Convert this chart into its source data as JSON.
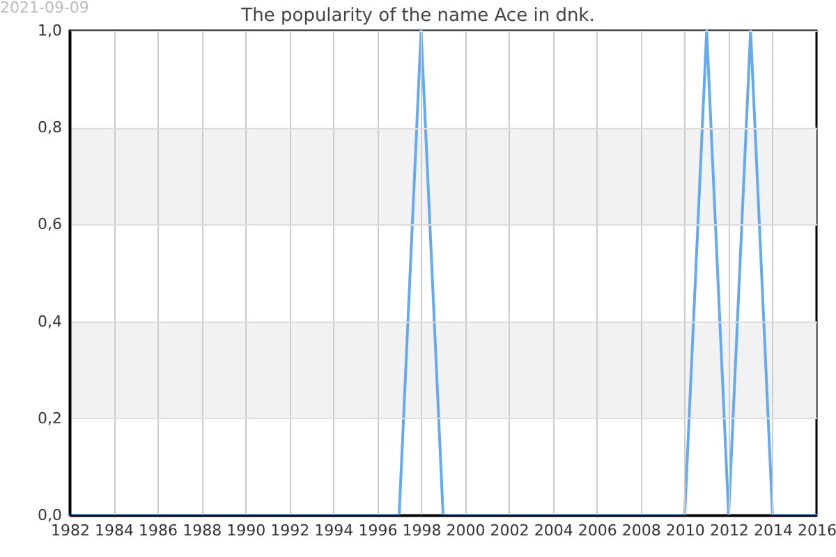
{
  "chart_data": {
    "type": "line",
    "title": "The popularity of the name Ace in dnk.",
    "annotations": [
      "2021-09-09"
    ],
    "x": [
      1982,
      1983,
      1984,
      1985,
      1986,
      1987,
      1988,
      1989,
      1990,
      1991,
      1992,
      1993,
      1994,
      1995,
      1996,
      1997,
      1998,
      1999,
      2000,
      2001,
      2002,
      2003,
      2004,
      2005,
      2006,
      2007,
      2008,
      2009,
      2010,
      2011,
      2012,
      2013,
      2014,
      2015,
      2016
    ],
    "values": [
      0,
      0,
      0,
      0,
      0,
      0,
      0,
      0,
      0,
      0,
      0,
      0,
      0,
      0,
      0,
      0,
      1,
      0,
      0,
      0,
      0,
      0,
      0,
      0,
      0,
      0,
      0,
      0,
      0,
      1,
      0,
      1,
      0,
      0,
      0
    ],
    "color": "#64aaf0",
    "xlim": [
      1982,
      2016
    ],
    "xticks": [
      1982,
      1984,
      1986,
      1988,
      1990,
      1992,
      1994,
      1996,
      1998,
      2000,
      2002,
      2004,
      2006,
      2008,
      2010,
      2012,
      2014,
      2016
    ],
    "ylim": [
      0,
      1
    ],
    "yticks": [
      {
        "value": 0,
        "label": "0,0"
      },
      {
        "value": 0.2,
        "label": "0,2"
      },
      {
        "value": 0.4,
        "label": "0,4"
      },
      {
        "value": 0.6,
        "label": "0,6"
      },
      {
        "value": 0.8,
        "label": "0,8"
      },
      {
        "value": 1,
        "label": "1,0"
      }
    ],
    "grid": true,
    "bands": [
      {
        "axis": "y",
        "from": 0.2,
        "to": 0.4,
        "color": "#f2f2f2"
      },
      {
        "axis": "y",
        "from": 0.6,
        "to": 0.8,
        "color": "#f2f2f2"
      }
    ]
  }
}
